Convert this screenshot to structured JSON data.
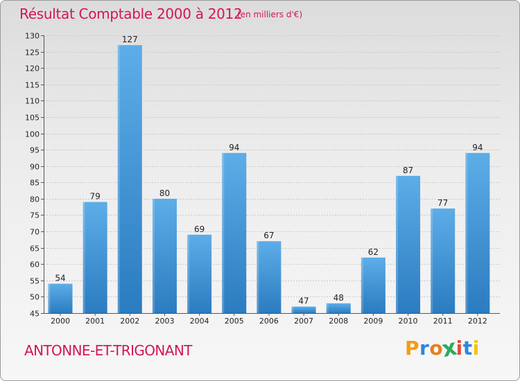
{
  "chart_data": {
    "type": "bar",
    "title": "Résultat Comptable 2000 à 2012",
    "subtitle": "(en milliers d'€)",
    "categories": [
      "2000",
      "2001",
      "2002",
      "2003",
      "2004",
      "2005",
      "2006",
      "2007",
      "2008",
      "2009",
      "2010",
      "2011",
      "2012"
    ],
    "values": [
      54,
      79,
      127,
      80,
      69,
      94,
      67,
      47,
      48,
      62,
      87,
      77,
      94
    ],
    "ylim": [
      45,
      130
    ],
    "yticks": [
      45,
      50,
      55,
      60,
      65,
      70,
      75,
      80,
      85,
      90,
      95,
      100,
      105,
      110,
      115,
      120,
      125,
      130
    ],
    "xlabel": "",
    "ylabel": "",
    "grid": true
  },
  "footer": {
    "place": "ANTONNE-ET-TRIGONANT",
    "logo": [
      "P",
      "r",
      "o",
      "x",
      "i",
      "t",
      "i"
    ]
  },
  "colors": {
    "accent": "#d4145a",
    "bar_light": "#5dade8",
    "bar_dark": "#2b7cc0",
    "logo_letters": [
      "#f39c12",
      "#2e86de",
      "#e67e22",
      "#27ae60",
      "#e74c3c",
      "#2e86de",
      "#f1c40f"
    ]
  }
}
